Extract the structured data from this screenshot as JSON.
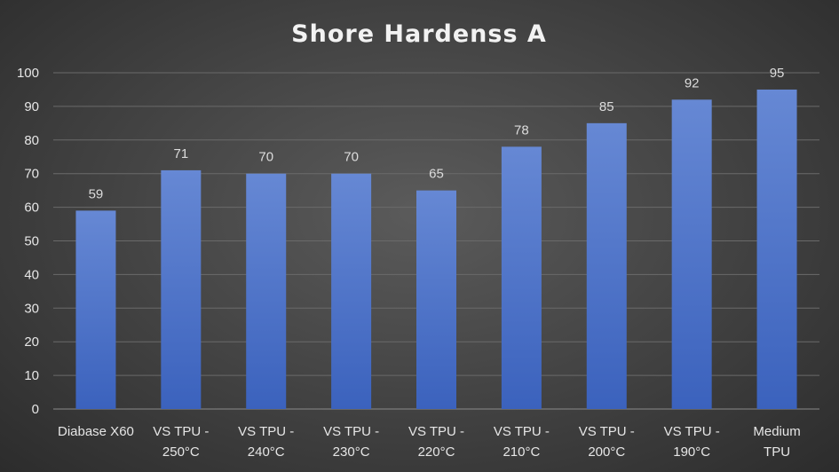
{
  "chart_data": {
    "type": "bar",
    "title": "Shore Hardenss A",
    "xlabel": "",
    "ylabel": "",
    "ylim": [
      0,
      100
    ],
    "yticks": [
      "0",
      "10",
      "20",
      "30",
      "40",
      "50",
      "60",
      "70",
      "80",
      "90",
      "100"
    ],
    "grid": true,
    "categories": [
      [
        "Diabase X60"
      ],
      [
        "VS TPU -",
        "250°C"
      ],
      [
        "VS TPU -",
        "240°C"
      ],
      [
        "VS TPU -",
        "230°C"
      ],
      [
        "VS TPU -",
        "220°C"
      ],
      [
        "VS TPU -",
        "210°C"
      ],
      [
        "VS TPU -",
        "200°C"
      ],
      [
        "VS TPU -",
        "190°C"
      ],
      [
        "Medium",
        "TPU"
      ]
    ],
    "values": [
      59,
      71,
      70,
      70,
      65,
      78,
      85,
      92,
      95
    ],
    "data_labels": [
      "59",
      "71",
      "70",
      "70",
      "65",
      "78",
      "85",
      "92",
      "95"
    ],
    "bar_color": "#4472c4"
  }
}
